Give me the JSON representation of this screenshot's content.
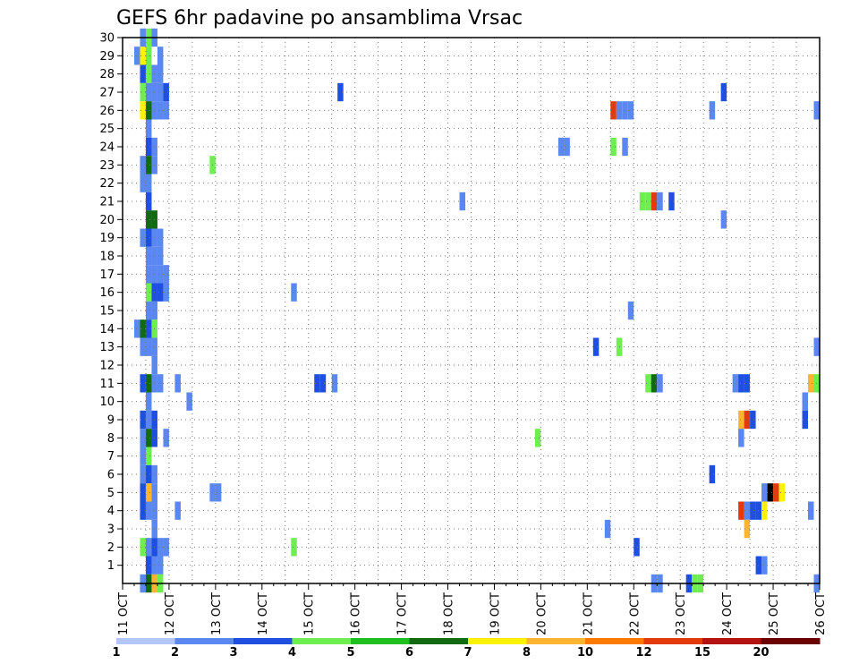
{
  "chart_data": {
    "type": "heatmap",
    "title": "GEFS 6hr padavine po ansamblima Vrsac",
    "xlabel": "",
    "ylabel": "",
    "x_ticks": [
      "11 OCT",
      "12 OCT",
      "13 OCT",
      "14 OCT",
      "15 OCT",
      "16 OCT",
      "17 OCT",
      "18 OCT",
      "19 OCT",
      "20 OCT",
      "21 OCT",
      "22 OCT",
      "23 OCT",
      "24 OCT",
      "25 OCT",
      "26 OCT"
    ],
    "y_ticks": [
      1,
      2,
      3,
      4,
      5,
      6,
      7,
      8,
      9,
      10,
      11,
      12,
      13,
      14,
      15,
      16,
      17,
      18,
      19,
      20,
      21,
      22,
      23,
      24,
      25,
      26,
      27,
      28,
      29,
      30
    ],
    "xlim_days": [
      0,
      15.0
    ],
    "ylim": [
      0,
      30
    ],
    "grid": true,
    "colorbar": {
      "labels": [
        "1",
        "2",
        "3",
        "4",
        "5",
        "6",
        "7",
        "8",
        "10",
        "12",
        "15",
        "20"
      ],
      "colors": [
        "#b4c6f7",
        "#5b87f0",
        "#1e4fe0",
        "#6fee52",
        "#1ebf1e",
        "#126b12",
        "#fff200",
        "#ffb431",
        "#ff7800",
        "#e33a0c",
        "#b51212",
        "#6a0000"
      ]
    },
    "cells": [
      [
        0.25,
        29,
        1
      ],
      [
        0.375,
        29,
        6
      ],
      [
        0.5,
        29,
        3
      ],
      [
        0.75,
        29,
        1
      ],
      [
        0.375,
        30,
        1
      ],
      [
        0.5,
        30,
        3
      ],
      [
        0.625,
        30,
        1
      ],
      [
        0.375,
        28,
        2
      ],
      [
        0.5,
        28,
        3
      ],
      [
        0.625,
        28,
        1
      ],
      [
        0.75,
        28,
        1
      ],
      [
        0.375,
        27,
        3
      ],
      [
        0.5,
        27,
        1
      ],
      [
        0.625,
        27,
        1
      ],
      [
        0.75,
        27,
        1
      ],
      [
        0.875,
        27,
        2
      ],
      [
        4.625,
        27,
        2
      ],
      [
        12.875,
        27,
        2
      ],
      [
        0.375,
        26,
        6
      ],
      [
        0.5,
        26,
        5
      ],
      [
        0.625,
        26,
        1
      ],
      [
        0.75,
        26,
        1
      ],
      [
        0.875,
        26,
        1
      ],
      [
        10.5,
        26,
        9
      ],
      [
        10.625,
        26,
        1
      ],
      [
        10.75,
        26,
        1
      ],
      [
        10.875,
        26,
        1
      ],
      [
        12.625,
        26,
        1
      ],
      [
        14.875,
        26,
        1
      ],
      [
        0.5,
        25,
        1
      ],
      [
        0.5,
        24,
        2
      ],
      [
        0.625,
        24,
        1
      ],
      [
        9.375,
        24,
        1
      ],
      [
        9.5,
        24,
        1
      ],
      [
        10.5,
        24,
        3
      ],
      [
        10.75,
        24,
        1
      ],
      [
        0.375,
        23,
        1
      ],
      [
        0.5,
        23,
        5
      ],
      [
        0.625,
        23,
        1
      ],
      [
        1.875,
        23,
        3
      ],
      [
        0.375,
        22,
        1
      ],
      [
        0.5,
        22,
        1
      ],
      [
        0.5,
        21,
        2
      ],
      [
        7.25,
        21,
        1
      ],
      [
        11.125,
        21,
        3
      ],
      [
        11.25,
        21,
        3
      ],
      [
        11.375,
        21,
        9
      ],
      [
        11.5,
        21,
        1
      ],
      [
        11.75,
        21,
        2
      ],
      [
        0.5,
        20,
        5
      ],
      [
        0.625,
        20,
        5
      ],
      [
        12.875,
        20,
        1
      ],
      [
        0.375,
        19,
        1
      ],
      [
        0.5,
        19,
        2
      ],
      [
        0.625,
        19,
        1
      ],
      [
        0.75,
        19,
        1
      ],
      [
        0.5,
        18,
        1
      ],
      [
        0.625,
        18,
        1
      ],
      [
        0.75,
        18,
        1
      ],
      [
        0.5,
        17,
        1
      ],
      [
        0.625,
        17,
        1
      ],
      [
        0.75,
        17,
        1
      ],
      [
        0.875,
        17,
        1
      ],
      [
        0.5,
        16,
        3
      ],
      [
        0.625,
        16,
        2
      ],
      [
        0.75,
        16,
        2
      ],
      [
        0.875,
        16,
        1
      ],
      [
        3.625,
        16,
        1
      ],
      [
        0.5,
        15,
        1
      ],
      [
        0.625,
        15,
        1
      ],
      [
        10.875,
        15,
        1
      ],
      [
        0.25,
        14,
        1
      ],
      [
        0.375,
        14,
        5
      ],
      [
        0.5,
        14,
        2
      ],
      [
        0.625,
        14,
        3
      ],
      [
        0.375,
        13,
        1
      ],
      [
        0.5,
        13,
        1
      ],
      [
        0.625,
        13,
        1
      ],
      [
        10.125,
        13,
        2
      ],
      [
        10.625,
        13,
        3
      ],
      [
        14.875,
        13,
        1
      ],
      [
        0.625,
        12,
        1
      ],
      [
        0.375,
        11,
        2
      ],
      [
        0.5,
        11,
        5
      ],
      [
        0.625,
        11,
        1
      ],
      [
        0.75,
        11,
        1
      ],
      [
        1.125,
        11,
        1
      ],
      [
        4.125,
        11,
        2
      ],
      [
        4.25,
        11,
        2
      ],
      [
        4.5,
        11,
        1
      ],
      [
        11.25,
        11,
        3
      ],
      [
        11.375,
        11,
        5
      ],
      [
        11.5,
        11,
        1
      ],
      [
        13.125,
        11,
        1
      ],
      [
        13.25,
        11,
        2
      ],
      [
        13.375,
        11,
        2
      ],
      [
        14.75,
        11,
        7
      ],
      [
        14.875,
        11,
        3
      ],
      [
        0.5,
        10,
        1
      ],
      [
        1.375,
        10,
        1
      ],
      [
        14.625,
        10,
        1
      ],
      [
        0.375,
        9,
        2
      ],
      [
        0.5,
        9,
        1
      ],
      [
        0.625,
        9,
        2
      ],
      [
        13.25,
        9,
        7
      ],
      [
        13.375,
        9,
        9
      ],
      [
        13.5,
        9,
        2
      ],
      [
        14.625,
        9,
        2
      ],
      [
        0.375,
        8,
        1
      ],
      [
        0.5,
        8,
        5
      ],
      [
        0.625,
        8,
        2
      ],
      [
        0.875,
        8,
        1
      ],
      [
        8.875,
        8,
        3
      ],
      [
        13.25,
        8,
        1
      ],
      [
        0.375,
        7,
        1
      ],
      [
        0.5,
        7,
        3
      ],
      [
        0.375,
        6,
        1
      ],
      [
        0.5,
        6,
        2
      ],
      [
        0.625,
        6,
        1
      ],
      [
        12.625,
        6,
        2
      ],
      [
        0.375,
        5,
        2
      ],
      [
        0.5,
        5,
        7
      ],
      [
        0.625,
        5,
        1
      ],
      [
        1.875,
        5,
        1
      ],
      [
        2.0,
        5,
        1
      ],
      [
        13.75,
        5,
        1
      ],
      [
        13.875,
        5,
        12
      ],
      [
        14.0,
        5,
        9
      ],
      [
        14.125,
        5,
        6
      ],
      [
        0.375,
        4,
        2
      ],
      [
        0.5,
        4,
        1
      ],
      [
        0.625,
        4,
        1
      ],
      [
        1.125,
        4,
        1
      ],
      [
        13.25,
        4,
        9
      ],
      [
        13.375,
        4,
        1
      ],
      [
        13.5,
        4,
        2
      ],
      [
        13.625,
        4,
        2
      ],
      [
        13.75,
        4,
        6
      ],
      [
        14.75,
        4,
        1
      ],
      [
        0.625,
        3,
        1
      ],
      [
        10.375,
        3,
        1
      ],
      [
        13.375,
        3,
        7
      ],
      [
        0.375,
        2,
        3
      ],
      [
        0.5,
        2,
        1
      ],
      [
        0.625,
        2,
        2
      ],
      [
        0.75,
        2,
        1
      ],
      [
        0.875,
        2,
        1
      ],
      [
        3.625,
        2,
        3
      ],
      [
        11.0,
        2,
        2
      ],
      [
        0.5,
        1,
        2
      ],
      [
        0.625,
        1,
        1
      ],
      [
        0.75,
        1,
        1
      ],
      [
        13.625,
        1,
        2
      ],
      [
        13.75,
        1,
        1
      ],
      [
        0.375,
        0,
        1
      ],
      [
        0.5,
        0,
        5
      ],
      [
        0.625,
        0,
        7
      ],
      [
        0.75,
        0,
        3
      ],
      [
        11.375,
        0,
        1
      ],
      [
        11.5,
        0,
        1
      ],
      [
        12.125,
        0,
        2
      ],
      [
        12.25,
        0,
        3
      ],
      [
        12.375,
        0,
        3
      ],
      [
        14.875,
        0,
        1
      ]
    ]
  }
}
